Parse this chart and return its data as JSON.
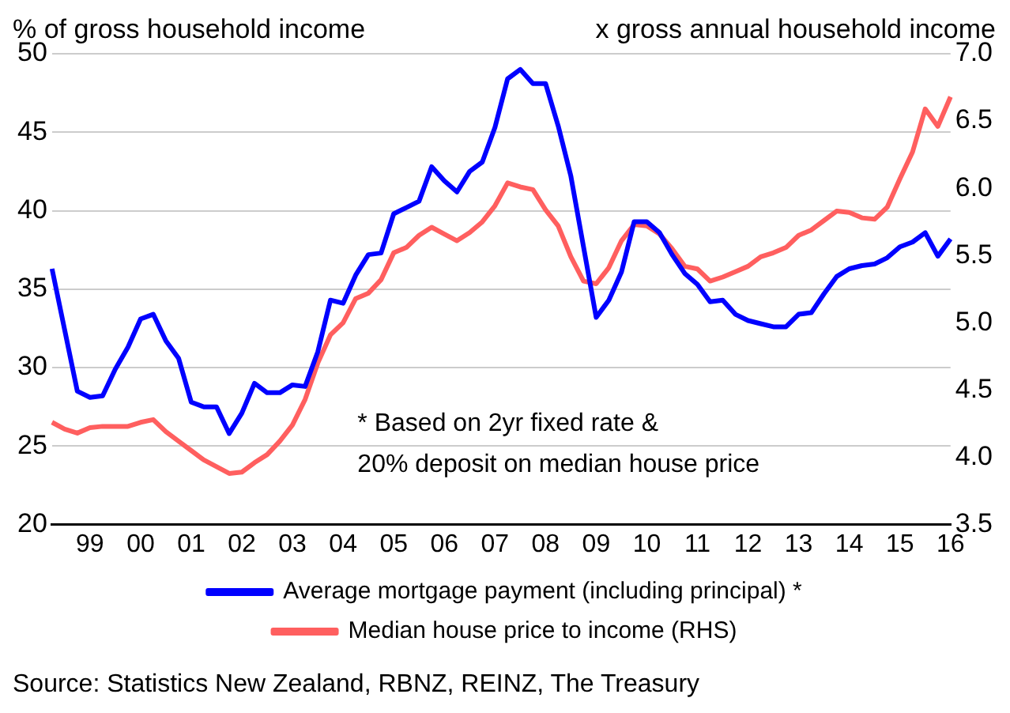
{
  "chart_data": {
    "type": "line",
    "ylabel": "% of gross household income",
    "y2label": "x gross annual household income",
    "categories": [
      null,
      null,
      null,
      "99",
      null,
      null,
      null,
      "00",
      null,
      null,
      null,
      "01",
      null,
      null,
      null,
      "02",
      null,
      null,
      null,
      "03",
      null,
      null,
      null,
      "04",
      null,
      null,
      null,
      "05",
      null,
      null,
      null,
      "06",
      null,
      null,
      null,
      "07",
      null,
      null,
      null,
      "08",
      null,
      null,
      null,
      "09",
      null,
      null,
      null,
      "10",
      null,
      null,
      null,
      "11",
      null,
      null,
      null,
      "12",
      null,
      null,
      null,
      "13",
      null,
      null,
      null,
      "14",
      null,
      null,
      null,
      "15",
      null,
      null,
      null,
      "16"
    ],
    "series": [
      {
        "name": "Average mortgage payment (including principal) *",
        "color": "#0000ff",
        "values": [
          36.3,
          32.4,
          28.5,
          28.1,
          28.2,
          29.9,
          31.3,
          33.1,
          33.4,
          31.7,
          30.6,
          27.8,
          27.5,
          27.5,
          25.8,
          27.1,
          29.0,
          28.4,
          28.4,
          28.9,
          28.8,
          31.0,
          34.3,
          34.1,
          35.9,
          37.2,
          37.3,
          39.8,
          40.2,
          40.6,
          42.8,
          41.9,
          41.2,
          42.5,
          43.1,
          45.3,
          48.4,
          49.0,
          48.1,
          48.1,
          45.4,
          42.2,
          37.7,
          33.2,
          34.3,
          36.1,
          39.3,
          39.3,
          38.6,
          37.2,
          36.0,
          35.3,
          34.2,
          34.3,
          33.4,
          33.0,
          32.8,
          32.6,
          32.6,
          33.4,
          33.5,
          34.7,
          35.8,
          36.3,
          36.5,
          36.6,
          37.0,
          37.7,
          38.0,
          38.6,
          37.1,
          38.2
        ]
      },
      {
        "name": "Median house price to income (RHS)",
        "color": "#ff5f5f",
        "axis": "y2",
        "values": [
          4.26,
          4.21,
          4.18,
          4.22,
          4.23,
          4.23,
          4.23,
          4.26,
          4.28,
          4.19,
          4.12,
          4.05,
          3.98,
          3.93,
          3.88,
          3.89,
          3.96,
          4.02,
          4.12,
          4.24,
          4.43,
          4.7,
          4.91,
          5.0,
          5.18,
          5.22,
          5.32,
          5.52,
          5.56,
          5.65,
          5.71,
          5.66,
          5.61,
          5.67,
          5.75,
          5.87,
          6.04,
          6.01,
          5.99,
          5.84,
          5.72,
          5.49,
          5.31,
          5.29,
          5.41,
          5.61,
          5.73,
          5.72,
          5.66,
          5.55,
          5.42,
          5.4,
          5.31,
          5.34,
          5.38,
          5.42,
          5.49,
          5.52,
          5.56,
          5.65,
          5.69,
          5.76,
          5.83,
          5.82,
          5.78,
          5.77,
          5.86,
          6.07,
          6.27,
          6.59,
          6.46,
          6.68
        ]
      }
    ],
    "ylim": [
      20,
      50
    ],
    "yticks": [
      20,
      25,
      30,
      35,
      40,
      45,
      50
    ],
    "y2lim": [
      3.5,
      7
    ],
    "y2ticks": [
      3.5,
      {
        "value": 4,
        "label": "4.0"
      },
      4.5,
      {
        "value": 5,
        "label": "5.0"
      },
      5.5,
      {
        "value": 6,
        "label": "6.0"
      },
      6.5,
      {
        "value": 7,
        "label": "7.0"
      }
    ],
    "grid": "y",
    "legend": "bottom",
    "marker": "none",
    "line_style": "solid",
    "annotations": [
      "* Based on 2yr fixed rate &\n20% deposit on median house price",
      "Source: Statistics New Zealand, RBNZ, REINZ, The Treasury"
    ]
  }
}
